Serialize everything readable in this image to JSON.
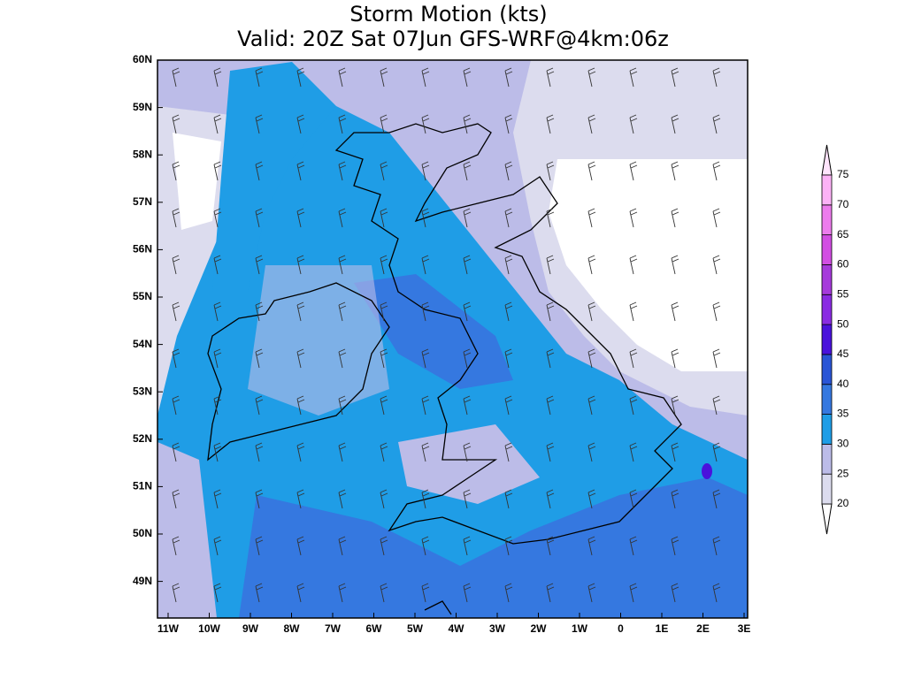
{
  "title": "Storm Motion (kts)",
  "subtitle": "Valid: 20Z Sat 07Jun GFS-WRF@4km:06z",
  "latitude_labels": [
    "60N",
    "59N",
    "58N",
    "57N",
    "56N",
    "55N",
    "54N",
    "53N",
    "52N",
    "51N",
    "50N",
    "49N"
  ],
  "longitude_labels": [
    "11W",
    "10W",
    "9W",
    "8W",
    "7W",
    "6W",
    "5W",
    "4W",
    "3W",
    "2W",
    "1W",
    "0",
    "1E",
    "2E",
    "3E"
  ],
  "colorbar": {
    "levels": [
      20,
      25,
      30,
      35,
      40,
      45,
      50,
      55,
      60,
      65,
      70,
      75
    ],
    "colors": [
      "#dcdcee",
      "#bcbce8",
      "#1f9de6",
      "#3578e0",
      "#2a55d6",
      "#4a12dc",
      "#8a2be2",
      "#a63adb",
      "#d24ee2",
      "#ec7cec",
      "#fcb2f6"
    ],
    "below_color": "#ffffff",
    "above_color": "#ffe4fc"
  }
}
